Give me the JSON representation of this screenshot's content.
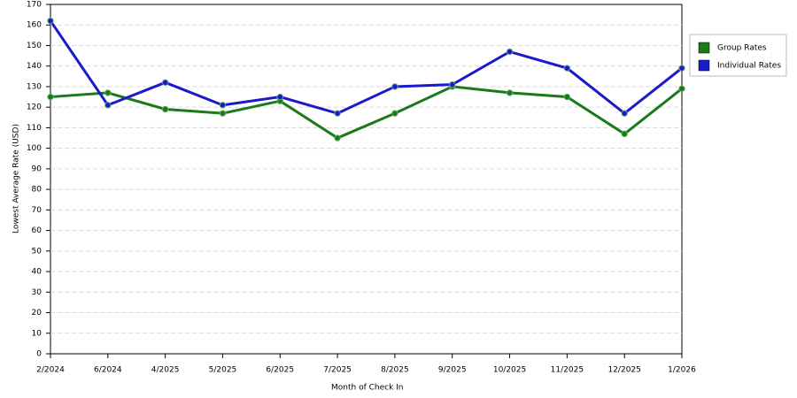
{
  "chart_data": {
    "type": "line",
    "x_label": "Month of Check In",
    "y_label": "Lowest Average Rate (USD)",
    "categories": [
      "2/2024",
      "6/2024",
      "4/2025",
      "5/2025",
      "6/2025",
      "7/2025",
      "8/2025",
      "9/2025",
      "10/2025",
      "11/2025",
      "12/2025",
      "1/2026"
    ],
    "series": [
      {
        "name": "Group Rates",
        "color": "#1a7a1a",
        "values": [
          125,
          127,
          119,
          117,
          123,
          105,
          117,
          130,
          127,
          125,
          107,
          129
        ]
      },
      {
        "name": "Individual Rates",
        "color": "#1a1acc",
        "values": [
          162,
          121,
          132,
          121,
          125,
          117,
          130,
          131,
          147,
          139,
          117,
          139
        ]
      }
    ],
    "ylim": [
      0,
      170
    ],
    "yticks": [
      0,
      10,
      20,
      30,
      40,
      50,
      60,
      70,
      80,
      90,
      100,
      110,
      120,
      130,
      140,
      150,
      160,
      170
    ],
    "grid": true,
    "legend": "right"
  }
}
